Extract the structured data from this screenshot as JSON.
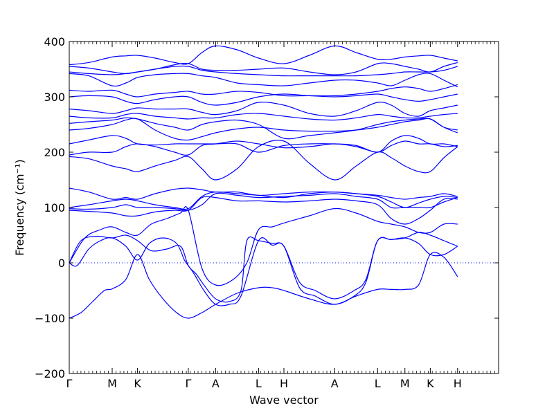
{
  "chart_data": {
    "type": "line",
    "xlabel": "Wave vector",
    "ylabel": "Frequency (cm⁻¹)",
    "xlim": [
      0,
      11.0
    ],
    "ylim": [
      -200,
      400
    ],
    "y_ticks": [
      -200,
      -100,
      0,
      100,
      200,
      300,
      400
    ],
    "x_ticks": [
      {
        "label": "Γ",
        "x": 0.0
      },
      {
        "label": "M",
        "x": 1.1
      },
      {
        "label": "K",
        "x": 1.75
      },
      {
        "label": "Γ",
        "x": 3.05
      },
      {
        "label": "A",
        "x": 3.75
      },
      {
        "label": "L",
        "x": 4.85
      },
      {
        "label": "H",
        "x": 5.5
      },
      {
        "label": "A",
        "x": 6.8
      },
      {
        "label": "L",
        "x": 7.9
      },
      {
        "label": "M",
        "x": 8.6
      },
      {
        "label": "K",
        "x": 9.25
      },
      {
        "label": "H",
        "x": 9.95
      }
    ],
    "zero_line": {
      "y": 0,
      "style": "dotted"
    },
    "grid": false,
    "series": [
      {
        "x": [
          0,
          0.3,
          0.6,
          0.9,
          1.1,
          1.45,
          1.75,
          2.05,
          2.4,
          2.75,
          3.05,
          3.4,
          3.75,
          4.3,
          4.85,
          5.2,
          5.5,
          6.15,
          6.8,
          7.35,
          7.9,
          8.25,
          8.6,
          8.95,
          9.25,
          9.6,
          9.95
        ],
        "y": [
          -100,
          -90,
          -70,
          -50,
          -47,
          -30,
          15,
          -30,
          -65,
          -90,
          -100,
          -90,
          -75,
          -55,
          -45,
          -45,
          -50,
          -65,
          -75,
          -60,
          -48,
          -48,
          -48,
          -40,
          15,
          10,
          -25
        ]
      },
      {
        "x": [
          0,
          0.2,
          0.5,
          0.8,
          1.1,
          1.45,
          1.75,
          2.05,
          2.4,
          2.75,
          2.95,
          3.05,
          3.2,
          3.45,
          3.75,
          4.1,
          4.4,
          4.85,
          5.2,
          5.5,
          5.9,
          6.3,
          6.8,
          7.3,
          7.6,
          7.9,
          8.25,
          8.6,
          8.95,
          9.25,
          9.6,
          9.95
        ],
        "y": [
          0,
          -5,
          25,
          40,
          45,
          30,
          5,
          35,
          45,
          35,
          5,
          -5,
          -20,
          -50,
          -75,
          -75,
          -60,
          40,
          32,
          30,
          -45,
          -60,
          -75,
          -60,
          -35,
          40,
          42,
          45,
          35,
          15,
          15,
          30
        ]
      },
      {
        "x": [
          0,
          0.3,
          0.7,
          1.1,
          1.45,
          1.75,
          2.1,
          2.5,
          2.85,
          3.05,
          3.25,
          3.45,
          3.75,
          4.1,
          4.4,
          4.55,
          4.85,
          5.2,
          5.5,
          5.9,
          6.3,
          6.8,
          7.3,
          7.6,
          7.9,
          8.25,
          8.6,
          8.95,
          9.25,
          9.6,
          9.95
        ],
        "y": [
          0,
          40,
          48,
          45,
          50,
          40,
          22,
          25,
          30,
          -5,
          -20,
          -40,
          -65,
          -70,
          -50,
          40,
          40,
          35,
          30,
          -35,
          -50,
          -65,
          -50,
          -30,
          40,
          42,
          45,
          55,
          50,
          40,
          30
        ]
      },
      {
        "x": [
          0,
          0.4,
          0.8,
          1.1,
          1.45,
          1.75,
          2.1,
          2.5,
          2.85,
          3.05,
          3.4,
          3.75,
          4.2,
          4.55,
          4.85,
          5.2,
          5.5,
          6.15,
          6.8,
          7.35,
          7.9,
          8.25,
          8.6,
          8.95,
          9.25,
          9.6,
          9.95
        ],
        "y": [
          0,
          45,
          60,
          65,
          55,
          50,
          70,
          80,
          90,
          95,
          -10,
          -40,
          -30,
          0,
          60,
          65,
          72,
          85,
          98,
          90,
          75,
          70,
          65,
          55,
          55,
          70,
          70
        ]
      },
      {
        "x": [
          0,
          0.5,
          1.1,
          1.45,
          1.75,
          2.2,
          2.7,
          3.05,
          3.4,
          3.75,
          4.3,
          4.85,
          5.5,
          6.15,
          6.8,
          7.35,
          7.9,
          8.25,
          8.6,
          8.95,
          9.25,
          9.6,
          9.95
        ],
        "y": [
          95,
          93,
          90,
          85,
          85,
          92,
          95,
          95,
          118,
          118,
          112,
          112,
          110,
          112,
          115,
          112,
          105,
          80,
          70,
          80,
          95,
          115,
          115
        ]
      },
      {
        "x": [
          0,
          0.5,
          1.1,
          1.45,
          1.75,
          2.2,
          2.7,
          3.05,
          3.4,
          3.75,
          4.3,
          4.85,
          5.5,
          6.15,
          6.8,
          7.35,
          7.9,
          8.25,
          8.6,
          8.95,
          9.25,
          9.6,
          9.95
        ],
        "y": [
          98,
          97,
          100,
          105,
          100,
          100,
          98,
          95,
          105,
          125,
          122,
          118,
          120,
          122,
          125,
          120,
          115,
          100,
          100,
          100,
          100,
          110,
          118
        ]
      },
      {
        "x": [
          0,
          0.5,
          1.1,
          1.45,
          1.75,
          2.2,
          2.7,
          3.05,
          3.4,
          3.75,
          4.3,
          4.85,
          5.5,
          6.15,
          6.8,
          7.35,
          7.9,
          8.25,
          8.6,
          8.95,
          9.25,
          9.6,
          9.95
        ],
        "y": [
          100,
          105,
          112,
          115,
          112,
          105,
          100,
          98,
          120,
          128,
          125,
          122,
          118,
          125,
          128,
          125,
          120,
          110,
          100,
          108,
          115,
          120,
          118
        ]
      },
      {
        "x": [
          0,
          0.5,
          1.1,
          1.45,
          1.75,
          2.2,
          2.7,
          3.05,
          3.4,
          3.75,
          4.3,
          4.85,
          5.5,
          6.15,
          6.8,
          7.35,
          7.9,
          8.25,
          8.6,
          8.95,
          9.25,
          9.6,
          9.95
        ],
        "y": [
          135,
          128,
          115,
          118,
          115,
          125,
          133,
          135,
          132,
          128,
          128,
          122,
          125,
          128,
          128,
          125,
          122,
          118,
          115,
          118,
          120,
          125,
          120
        ]
      },
      {
        "x": [
          0,
          0.5,
          1.1,
          1.45,
          1.75,
          2.2,
          2.7,
          3.05,
          3.4,
          3.75,
          4.3,
          4.85,
          5.5,
          6.15,
          6.8,
          7.35,
          7.9,
          8.25,
          8.6,
          8.95,
          9.25,
          9.6,
          9.95
        ],
        "y": [
          192,
          188,
          175,
          170,
          165,
          175,
          185,
          192,
          170,
          150,
          170,
          210,
          220,
          180,
          150,
          175,
          200,
          190,
          175,
          165,
          165,
          190,
          210
        ]
      },
      {
        "x": [
          0,
          0.5,
          1.1,
          1.45,
          1.75,
          2.2,
          2.7,
          3.05,
          3.4,
          3.75,
          4.3,
          4.85,
          5.5,
          6.15,
          6.8,
          7.35,
          7.9,
          8.25,
          8.6,
          8.95,
          9.25,
          9.6,
          9.95
        ],
        "y": [
          195,
          200,
          200,
          210,
          215,
          210,
          200,
          195,
          212,
          215,
          220,
          215,
          208,
          210,
          215,
          210,
          200,
          212,
          220,
          215,
          215,
          210,
          212
        ]
      },
      {
        "x": [
          0,
          0.5,
          1.1,
          1.45,
          1.75,
          2.2,
          2.7,
          3.05,
          3.4,
          3.75,
          4.3,
          4.85,
          5.5,
          6.15,
          6.8,
          7.35,
          7.9,
          8.25,
          8.6,
          8.95,
          9.25,
          9.6,
          9.95
        ],
        "y": [
          215,
          222,
          230,
          225,
          215,
          213,
          215,
          215,
          215,
          215,
          215,
          200,
          212,
          215,
          215,
          212,
          200,
          220,
          230,
          225,
          215,
          215,
          210
        ]
      },
      {
        "x": [
          0,
          0.5,
          1.1,
          1.45,
          1.75,
          2.2,
          2.7,
          3.05,
          3.4,
          3.75,
          4.3,
          4.85,
          5.5,
          6.15,
          6.8,
          7.35,
          7.9,
          8.25,
          8.6,
          8.95,
          9.25,
          9.6,
          9.95
        ],
        "y": [
          240,
          243,
          250,
          258,
          260,
          240,
          225,
          222,
          228,
          235,
          242,
          245,
          240,
          238,
          238,
          240,
          245,
          250,
          255,
          258,
          260,
          245,
          235
        ]
      },
      {
        "x": [
          0,
          0.5,
          1.1,
          1.45,
          1.75,
          2.2,
          2.7,
          3.05,
          3.4,
          3.75,
          4.3,
          4.85,
          5.5,
          6.15,
          6.8,
          7.35,
          7.9,
          8.25,
          8.6,
          8.95,
          9.25,
          9.6,
          9.95
        ],
        "y": [
          252,
          255,
          258,
          262,
          260,
          252,
          245,
          240,
          250,
          255,
          258,
          250,
          225,
          230,
          235,
          240,
          250,
          255,
          258,
          260,
          260,
          245,
          240
        ]
      },
      {
        "x": [
          0,
          0.5,
          1.1,
          1.45,
          1.75,
          2.2,
          2.7,
          3.05,
          3.4,
          3.75,
          4.3,
          4.85,
          5.5,
          6.15,
          6.8,
          7.35,
          7.9,
          8.25,
          8.6,
          8.95,
          9.25,
          9.6,
          9.95
        ],
        "y": [
          265,
          262,
          262,
          268,
          270,
          265,
          262,
          260,
          262,
          262,
          268,
          270,
          265,
          260,
          258,
          262,
          268,
          265,
          262,
          262,
          265,
          268,
          270
        ]
      },
      {
        "x": [
          0,
          0.5,
          1.1,
          1.45,
          1.75,
          2.2,
          2.7,
          3.05,
          3.4,
          3.75,
          4.3,
          4.85,
          5.5,
          6.15,
          6.8,
          7.35,
          7.9,
          8.25,
          8.6,
          8.95,
          9.25,
          9.6,
          9.95
        ],
        "y": [
          278,
          275,
          270,
          275,
          280,
          278,
          278,
          278,
          272,
          268,
          275,
          290,
          285,
          270,
          265,
          275,
          290,
          285,
          270,
          265,
          275,
          280,
          285
        ]
      },
      {
        "x": [
          0,
          0.5,
          1.1,
          1.45,
          1.75,
          2.2,
          2.7,
          3.05,
          3.4,
          3.75,
          4.3,
          4.85,
          5.5,
          6.15,
          6.8,
          7.35,
          7.9,
          8.25,
          8.6,
          8.95,
          9.25,
          9.6,
          9.95
        ],
        "y": [
          300,
          302,
          300,
          292,
          288,
          295,
          300,
          300,
          290,
          285,
          290,
          300,
          305,
          302,
          300,
          302,
          305,
          300,
          295,
          292,
          295,
          300,
          305
        ]
      },
      {
        "x": [
          0,
          0.5,
          1.1,
          1.45,
          1.75,
          2.2,
          2.7,
          3.05,
          3.4,
          3.75,
          4.3,
          4.85,
          5.5,
          6.15,
          6.8,
          7.35,
          7.9,
          8.25,
          8.6,
          8.95,
          9.25,
          9.6,
          9.95
        ],
        "y": [
          312,
          310,
          312,
          305,
          300,
          305,
          308,
          310,
          305,
          305,
          310,
          308,
          302,
          302,
          302,
          305,
          310,
          315,
          318,
          315,
          310,
          315,
          322
        ]
      },
      {
        "x": [
          0,
          0.5,
          1.1,
          1.45,
          1.75,
          2.2,
          2.7,
          3.05,
          3.4,
          3.75,
          4.3,
          4.85,
          5.5,
          6.15,
          6.8,
          7.35,
          7.9,
          8.25,
          8.6,
          8.95,
          9.25,
          9.6,
          9.95
        ],
        "y": [
          342,
          338,
          320,
          325,
          335,
          340,
          342,
          342,
          338,
          335,
          325,
          322,
          320,
          325,
          330,
          330,
          325,
          320,
          330,
          340,
          342,
          330,
          318
        ]
      },
      {
        "x": [
          0,
          0.5,
          1.1,
          1.45,
          1.75,
          2.2,
          2.7,
          3.05,
          3.4,
          3.75,
          4.3,
          4.85,
          5.5,
          6.15,
          6.8,
          7.35,
          7.9,
          8.25,
          8.6,
          8.95,
          9.25,
          9.6,
          9.95
        ],
        "y": [
          345,
          342,
          340,
          342,
          345,
          350,
          355,
          355,
          348,
          345,
          342,
          340,
          338,
          338,
          338,
          338,
          340,
          342,
          345,
          345,
          345,
          348,
          355
        ]
      },
      {
        "x": [
          0,
          0.5,
          1.1,
          1.45,
          1.75,
          2.2,
          2.7,
          3.05,
          3.4,
          3.75,
          4.3,
          4.85,
          5.5,
          6.15,
          6.8,
          7.35,
          7.9,
          8.25,
          8.6,
          8.95,
          9.25,
          9.6,
          9.95
        ],
        "y": [
          355,
          352,
          345,
          342,
          345,
          350,
          358,
          360,
          350,
          348,
          348,
          350,
          352,
          345,
          340,
          345,
          360,
          360,
          355,
          350,
          345,
          355,
          362
        ]
      },
      {
        "x": [
          0,
          0.5,
          1.1,
          1.45,
          1.75,
          2.2,
          2.7,
          3.05,
          3.4,
          3.75,
          4.3,
          4.85,
          5.5,
          6.15,
          6.8,
          7.35,
          7.9,
          8.25,
          8.6,
          8.95,
          9.25,
          9.6,
          9.95
        ],
        "y": [
          358,
          362,
          372,
          374,
          375,
          370,
          362,
          360,
          380,
          392,
          385,
          370,
          360,
          375,
          392,
          380,
          368,
          368,
          372,
          374,
          375,
          370,
          365
        ]
      }
    ]
  }
}
